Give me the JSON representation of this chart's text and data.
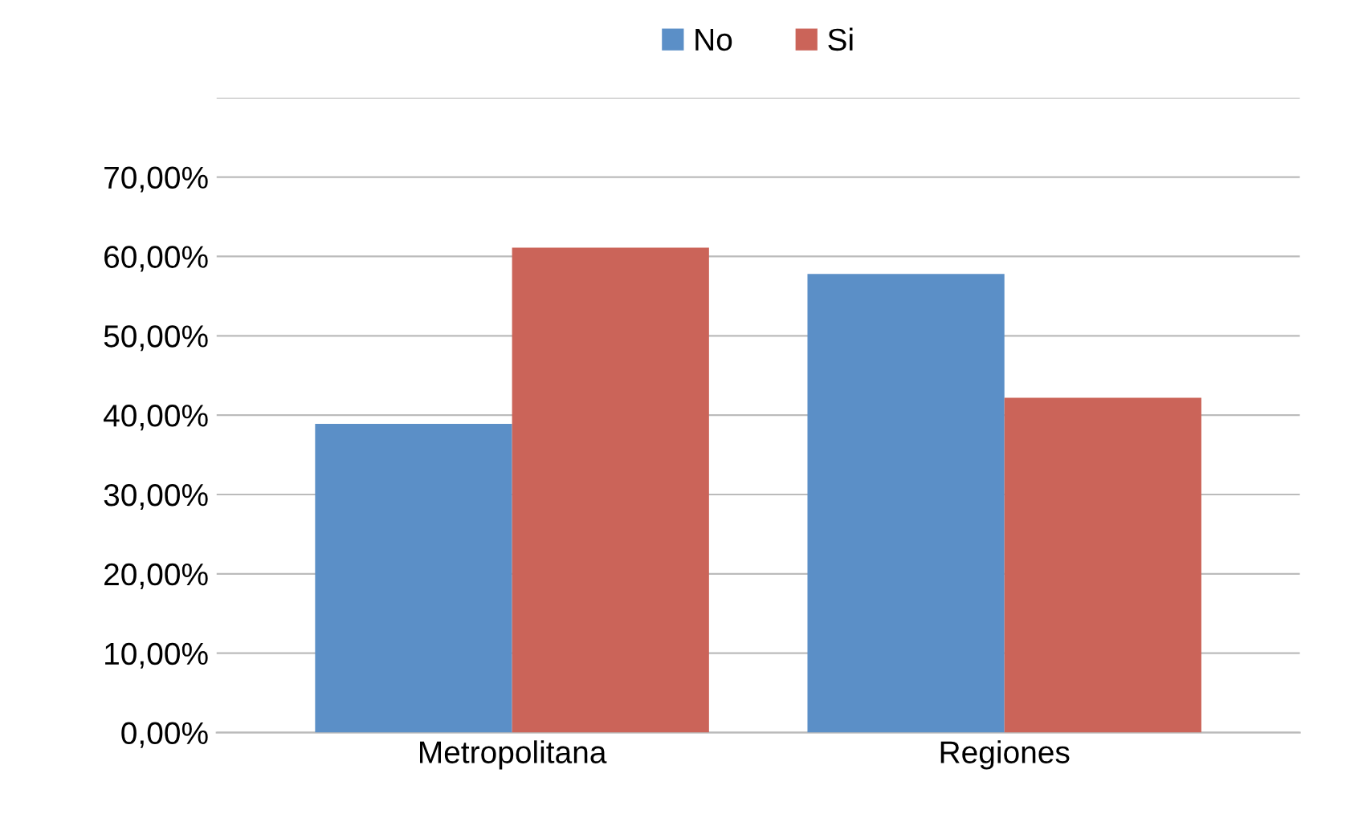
{
  "chart_data": {
    "type": "bar",
    "categories": [
      "Metropolitana",
      "Regiones"
    ],
    "series": [
      {
        "name": "No",
        "color": "#5b8fc7",
        "values": [
          38.9,
          57.8
        ]
      },
      {
        "name": "Si",
        "color": "#cb6459",
        "values": [
          61.1,
          42.2
        ]
      }
    ],
    "ylim": [
      0,
      80
    ],
    "yticks": [
      {
        "value": 0,
        "label": "0,00%"
      },
      {
        "value": 10,
        "label": "10,00%"
      },
      {
        "value": 20,
        "label": "20,00%"
      },
      {
        "value": 30,
        "label": "30,00%"
      },
      {
        "value": 40,
        "label": "40,00%"
      },
      {
        "value": 50,
        "label": "50,00%"
      },
      {
        "value": 60,
        "label": "60,00%"
      },
      {
        "value": 70,
        "label": "70,00%"
      },
      {
        "value": 80,
        "label": null
      }
    ],
    "grid": "y",
    "legend": "top"
  }
}
